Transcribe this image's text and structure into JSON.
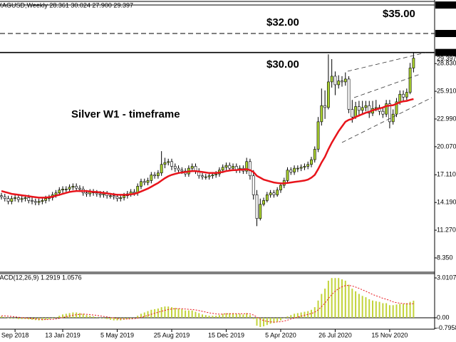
{
  "chart_data": {
    "type": "candlestick",
    "title": "XAGUSD,Weekly 28.361 30.024 27.900 29.397",
    "categories": [
      null,
      null,
      null,
      null,
      "Sep 2018",
      null,
      null,
      null,
      null,
      null,
      null,
      null,
      null,
      null,
      null,
      null,
      null,
      null,
      "13 Jan 2019",
      null,
      null,
      null,
      null,
      null,
      null,
      null,
      null,
      null,
      null,
      null,
      null,
      null,
      null,
      null,
      "5 May 2019",
      null,
      null,
      null,
      null,
      null,
      null,
      null,
      null,
      null,
      null,
      null,
      null,
      null,
      null,
      null,
      "25 Aug 2019",
      null,
      null,
      null,
      null,
      null,
      null,
      null,
      null,
      null,
      null,
      null,
      null,
      null,
      null,
      null,
      "15 Dec 2019",
      null,
      null,
      null,
      null,
      null,
      null,
      null,
      null,
      null,
      null,
      null,
      null,
      null,
      null,
      null,
      "5 Apr 2020",
      null,
      null,
      null,
      null,
      null,
      null,
      null,
      null,
      null,
      null,
      null,
      null,
      null,
      null,
      null,
      "26 Jul 2020",
      null,
      null,
      null,
      null,
      null,
      null,
      null,
      null,
      null,
      null,
      null,
      null,
      null,
      null,
      null,
      "15 Nov 2020",
      null,
      null,
      null,
      null,
      null,
      null,
      null
    ],
    "open": [
      14.9,
      14.8,
      14.6,
      14.3,
      14.6,
      14.7,
      14.5,
      14.6,
      14.7,
      14.4,
      14.3,
      14.2,
      14.3,
      14.4,
      14.6,
      14.7,
      15.0,
      15.2,
      15.5,
      15.6,
      15.6,
      15.8,
      15.9,
      15.7,
      15.6,
      15.2,
      15.1,
      15.3,
      15.2,
      15.1,
      15.0,
      15.1,
      14.9,
      14.9,
      14.8,
      14.6,
      14.7,
      14.9,
      15.1,
      15.3,
      15.2,
      15.9,
      16.4,
      16.3,
      16.5,
      17.1,
      17.0,
      17.3,
      18.2,
      18.4,
      18.5,
      18.0,
      17.8,
      17.6,
      17.5,
      17.2,
      17.8,
      18.0,
      17.5,
      17.0,
      16.9,
      16.9,
      17.0,
      17.1,
      17.2,
      17.6,
      17.9,
      18.1,
      17.8,
      18.0,
      17.6,
      17.8,
      17.5,
      18.5,
      17.0,
      15.0,
      12.5,
      14.0,
      14.4,
      15.0,
      15.2,
      15.0,
      15.5,
      16.0,
      16.5,
      17.6,
      17.4,
      17.8,
      17.8,
      17.9,
      18.0,
      18.2,
      18.7,
      19.8,
      22.7,
      24.4,
      24.2,
      26.9,
      27.5,
      26.6,
      27.0,
      26.9,
      27.2,
      24.0,
      23.2,
      24.3,
      23.9,
      24.2,
      24.4,
      23.6,
      24.1,
      24.2,
      23.8,
      23.5,
      24.6,
      22.7,
      23.5,
      24.8,
      25.6,
      25.3,
      25.8,
      28.361
    ],
    "high": [
      15.2,
      15.1,
      14.9,
      14.9,
      15.0,
      15.0,
      14.9,
      15.0,
      15.0,
      14.7,
      14.6,
      14.6,
      14.7,
      14.9,
      15.0,
      15.3,
      15.5,
      15.8,
      15.9,
      15.9,
      16.1,
      16.2,
      16.2,
      16.0,
      15.9,
      15.5,
      15.6,
      15.6,
      15.5,
      15.4,
      15.4,
      15.4,
      15.2,
      15.2,
      15.1,
      15.0,
      15.2,
      15.4,
      15.6,
      15.6,
      16.2,
      16.7,
      16.7,
      16.8,
      17.4,
      17.4,
      17.6,
      19.6,
      18.9,
      18.8,
      18.8,
      18.3,
      18.1,
      17.9,
      17.8,
      18.1,
      18.3,
      18.3,
      17.8,
      17.3,
      17.2,
      17.3,
      17.4,
      17.5,
      17.9,
      18.2,
      18.4,
      18.4,
      18.3,
      18.3,
      18.1,
      18.1,
      18.9,
      18.8,
      17.6,
      15.5,
      14.6,
      14.7,
      15.3,
      15.5,
      15.5,
      15.8,
      16.3,
      16.8,
      17.9,
      17.9,
      18.1,
      18.1,
      18.2,
      18.3,
      18.5,
      19.0,
      20.1,
      23.2,
      26.2,
      26.0,
      29.8,
      29.3,
      28.0,
      27.6,
      27.5,
      27.9,
      27.5,
      25.0,
      24.8,
      24.9,
      24.9,
      24.9,
      24.9,
      24.9,
      25.0,
      24.5,
      24.3,
      25.0,
      25.0,
      24.0,
      25.2,
      26.0,
      26.0,
      26.2,
      28.9,
      30.024
    ],
    "low": [
      14.5,
      14.3,
      14.0,
      14.0,
      14.3,
      14.2,
      14.2,
      14.3,
      14.1,
      14.0,
      13.9,
      13.9,
      14.0,
      14.1,
      14.3,
      14.4,
      14.7,
      14.9,
      15.2,
      15.3,
      15.3,
      15.5,
      15.4,
      15.3,
      14.9,
      14.8,
      14.8,
      14.9,
      14.8,
      14.7,
      14.7,
      14.6,
      14.6,
      14.5,
      14.3,
      14.3,
      14.4,
      14.6,
      14.8,
      14.9,
      14.9,
      15.6,
      16.0,
      16.0,
      16.2,
      16.7,
      16.7,
      17.0,
      17.8,
      18.1,
      17.6,
      17.4,
      17.3,
      17.2,
      16.9,
      16.9,
      17.5,
      17.2,
      16.7,
      16.6,
      16.6,
      16.6,
      16.7,
      16.8,
      16.9,
      17.3,
      17.6,
      17.5,
      17.5,
      17.3,
      17.3,
      17.2,
      17.2,
      16.6,
      14.5,
      11.7,
      12.3,
      13.8,
      14.2,
      14.7,
      14.7,
      14.8,
      15.2,
      15.7,
      16.3,
      17.1,
      17.1,
      17.4,
      17.5,
      17.6,
      17.7,
      17.9,
      18.4,
      19.5,
      22.3,
      23.0,
      24.0,
      26.3,
      25.5,
      26.2,
      26.4,
      26.5,
      23.6,
      22.6,
      23.0,
      23.4,
      23.5,
      23.8,
      23.1,
      23.3,
      23.8,
      23.4,
      23.1,
      23.2,
      22.0,
      22.4,
      23.2,
      24.5,
      24.9,
      25.0,
      25.6,
      27.9
    ],
    "close": [
      14.8,
      14.6,
      14.3,
      14.6,
      14.7,
      14.5,
      14.6,
      14.7,
      14.4,
      14.3,
      14.2,
      14.3,
      14.4,
      14.6,
      14.7,
      15.0,
      15.2,
      15.5,
      15.6,
      15.6,
      15.8,
      15.9,
      15.7,
      15.6,
      15.2,
      15.1,
      15.3,
      15.2,
      15.1,
      15.0,
      15.1,
      14.9,
      14.9,
      14.8,
      14.6,
      14.7,
      14.9,
      15.1,
      15.3,
      15.2,
      15.9,
      16.4,
      16.3,
      16.5,
      17.1,
      17.0,
      17.3,
      18.2,
      18.4,
      18.5,
      18.0,
      17.8,
      17.6,
      17.5,
      17.2,
      17.8,
      18.0,
      17.5,
      17.0,
      16.9,
      16.9,
      17.0,
      17.1,
      17.2,
      17.6,
      17.9,
      18.1,
      17.8,
      18.0,
      17.6,
      17.8,
      17.5,
      18.5,
      17.0,
      15.0,
      12.5,
      14.0,
      14.4,
      15.0,
      15.2,
      15.0,
      15.5,
      16.0,
      16.5,
      17.6,
      17.4,
      17.8,
      17.8,
      17.9,
      18.0,
      18.2,
      18.7,
      19.8,
      22.7,
      24.4,
      24.2,
      26.9,
      27.5,
      26.6,
      27.0,
      26.9,
      27.2,
      24.0,
      23.2,
      24.3,
      23.9,
      24.2,
      24.4,
      23.6,
      24.1,
      24.2,
      23.8,
      23.5,
      24.6,
      22.7,
      23.5,
      24.8,
      25.6,
      25.3,
      25.8,
      28.361,
      29.397
    ],
    "up_color": "#a8cf2e",
    "down_color": "#ffffff",
    "ma": [
      15.4,
      15.3,
      15.2,
      15.1,
      15.05,
      15.0,
      14.95,
      14.9,
      14.85,
      14.8,
      14.75,
      14.7,
      14.7,
      14.7,
      14.75,
      14.8,
      14.9,
      15.0,
      15.1,
      15.2,
      15.3,
      15.35,
      15.4,
      15.4,
      15.4,
      15.4,
      15.35,
      15.3,
      15.3,
      15.25,
      15.2,
      15.15,
      15.1,
      15.05,
      15.0,
      15.0,
      15.0,
      15.0,
      15.05,
      15.1,
      15.2,
      15.35,
      15.5,
      15.65,
      15.85,
      16.05,
      16.25,
      16.5,
      16.75,
      16.95,
      17.1,
      17.2,
      17.3,
      17.35,
      17.4,
      17.45,
      17.5,
      17.5,
      17.45,
      17.4,
      17.35,
      17.3,
      17.3,
      17.3,
      17.35,
      17.4,
      17.5,
      17.55,
      17.6,
      17.6,
      17.65,
      17.65,
      17.7,
      17.6,
      17.4,
      17.0,
      16.8,
      16.6,
      16.5,
      16.4,
      16.3,
      16.25,
      16.2,
      16.2,
      16.25,
      16.3,
      16.35,
      16.4,
      16.45,
      16.5,
      16.6,
      16.8,
      17.1,
      17.7,
      18.4,
      19.0,
      19.8,
      20.5,
      21.1,
      21.7,
      22.2,
      22.7,
      22.9,
      23.0,
      23.2,
      23.35,
      23.5,
      23.65,
      23.75,
      23.9,
      24.0,
      24.1,
      24.2,
      24.35,
      24.4,
      24.45,
      24.6,
      24.75,
      24.85,
      24.9,
      25.0,
      25.1
    ],
    "ma_color": "#e8141b",
    "ylim": [
      6.92,
      35.38
    ],
    "yticks": [
      {
        "value": 28.83,
        "label": "28.830"
      },
      {
        "value": 25.91,
        "label": "25.910"
      },
      {
        "value": 22.99,
        "label": "22.990"
      },
      {
        "value": 20.07,
        "label": "20.070"
      },
      {
        "value": 17.11,
        "label": "17.110"
      },
      {
        "value": 14.19,
        "label": "14.190"
      },
      {
        "value": 11.27,
        "label": "11.270"
      },
      {
        "value": 8.35,
        "label": "8.350"
      }
    ],
    "price_lines": [
      {
        "value": 35,
        "label": "35.000",
        "style": "solid"
      },
      {
        "value": 32,
        "label": "32.000",
        "style": "dashed"
      },
      {
        "value": 30,
        "label": "30.000",
        "style": "solid"
      }
    ],
    "last_price_label": "29.397",
    "annotations": [
      "$35.00",
      "$32.00",
      "$30.00",
      "Silver W1 - timeframe"
    ],
    "macd": {
      "label": "MACD(12,26,9) 1.2919 1.0576",
      "values": [
        0.1,
        0.05,
        0.0,
        -0.05,
        -0.05,
        -0.1,
        -0.1,
        -0.1,
        -0.12,
        -0.15,
        -0.18,
        -0.2,
        -0.2,
        -0.15,
        -0.1,
        -0.05,
        0.05,
        0.15,
        0.25,
        0.3,
        0.35,
        0.4,
        0.4,
        0.35,
        0.3,
        0.2,
        0.15,
        0.1,
        0.05,
        0.0,
        -0.05,
        -0.1,
        -0.15,
        -0.2,
        -0.2,
        -0.2,
        -0.15,
        -0.1,
        -0.05,
        0.0,
        0.15,
        0.3,
        0.4,
        0.5,
        0.6,
        0.65,
        0.7,
        0.8,
        0.85,
        0.85,
        0.8,
        0.75,
        0.7,
        0.65,
        0.55,
        0.55,
        0.55,
        0.45,
        0.35,
        0.25,
        0.2,
        0.15,
        0.15,
        0.15,
        0.2,
        0.3,
        0.35,
        0.35,
        0.35,
        0.3,
        0.3,
        0.25,
        0.35,
        0.2,
        -0.1,
        -0.6,
        -0.7,
        -0.65,
        -0.55,
        -0.45,
        -0.4,
        -0.3,
        -0.2,
        -0.05,
        0.1,
        0.2,
        0.3,
        0.35,
        0.4,
        0.45,
        0.5,
        0.6,
        0.8,
        1.3,
        1.8,
        2.2,
        2.8,
        3.0,
        3.0,
        3.0,
        2.9,
        2.8,
        2.5,
        2.2,
        2.0,
        1.8,
        1.65,
        1.55,
        1.4,
        1.3,
        1.25,
        1.2,
        1.1,
        1.1,
        0.95,
        0.95,
        1.0,
        1.05,
        1.05,
        1.1,
        1.2,
        1.2919
      ],
      "signal": [
        0.15,
        0.14,
        0.12,
        0.1,
        0.07,
        0.04,
        0.01,
        -0.02,
        -0.04,
        -0.06,
        -0.09,
        -0.11,
        -0.13,
        -0.14,
        -0.13,
        -0.12,
        -0.09,
        -0.04,
        0.02,
        0.08,
        0.14,
        0.19,
        0.23,
        0.26,
        0.27,
        0.26,
        0.24,
        0.21,
        0.18,
        0.14,
        0.1,
        0.06,
        0.02,
        -0.02,
        -0.06,
        -0.09,
        -0.1,
        -0.1,
        -0.09,
        -0.07,
        -0.03,
        0.03,
        0.1,
        0.18,
        0.26,
        0.34,
        0.41,
        0.49,
        0.56,
        0.62,
        0.66,
        0.68,
        0.69,
        0.68,
        0.66,
        0.64,
        0.62,
        0.59,
        0.54,
        0.48,
        0.43,
        0.37,
        0.33,
        0.29,
        0.27,
        0.28,
        0.29,
        0.3,
        0.31,
        0.31,
        0.31,
        0.3,
        0.31,
        0.29,
        0.21,
        0.05,
        -0.1,
        -0.21,
        -0.28,
        -0.31,
        -0.33,
        -0.32,
        -0.3,
        -0.25,
        -0.18,
        -0.1,
        -0.02,
        0.05,
        0.12,
        0.19,
        0.25,
        0.32,
        0.42,
        0.6,
        0.84,
        1.11,
        1.45,
        1.76,
        2.0,
        2.2,
        2.34,
        2.43,
        2.44,
        2.4,
        2.32,
        2.22,
        2.11,
        2.0,
        1.88,
        1.76,
        1.66,
        1.57,
        1.47,
        1.4,
        1.31,
        1.2,
        1.14,
        1.1,
        1.07,
        1.05,
        1.04,
        1.0576
      ],
      "color": "#c2d33a",
      "signal_color": "#e8141b",
      "ylim": [
        -0.81,
        3.39
      ],
      "yticks": [
        3.0107,
        {
          "value": 0,
          "label": "0.00"
        },
        -0.7958
      ]
    }
  }
}
